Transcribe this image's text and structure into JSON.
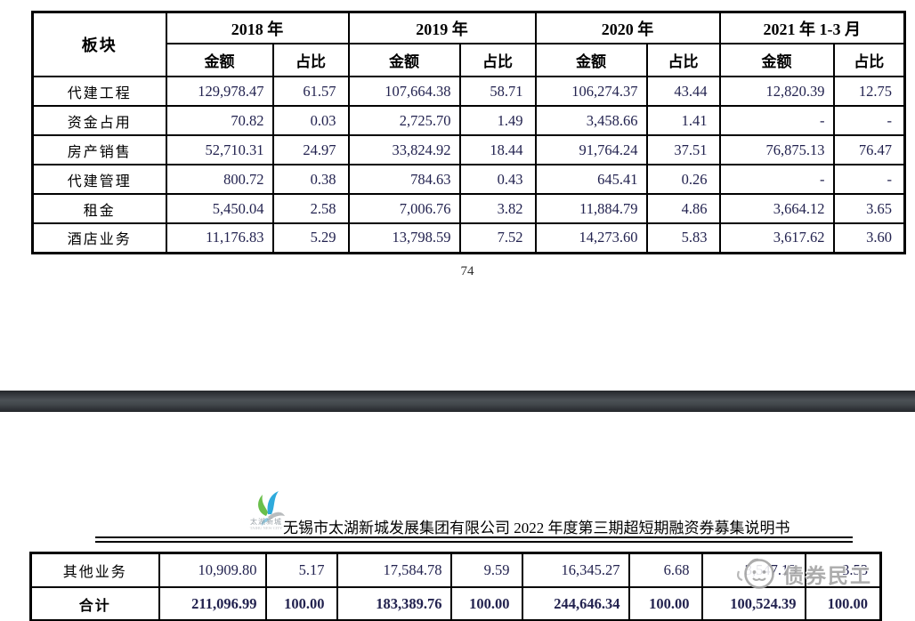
{
  "document": {
    "page_number": "74",
    "title": "无锡市太湖新城发展集团有限公司 2022 年度第三期超短期融资券募集说明书",
    "logo": {
      "name": "太湖新城",
      "subtext": "TAIHU NEW CITY"
    },
    "watermark": "债券民工"
  },
  "table": {
    "corner_header": "板块",
    "year_groups": [
      "2018 年",
      "2019 年",
      "2020 年",
      "2021 年 1-3 月"
    ],
    "sub_headers": [
      "金额",
      "占比"
    ],
    "rows_page1": [
      {
        "label": "代建工程",
        "values": [
          "129,978.47",
          "61.57",
          "107,664.38",
          "58.71",
          "106,274.37",
          "43.44",
          "12,820.39",
          "12.75"
        ],
        "bold": false
      },
      {
        "label": "资金占用",
        "values": [
          "70.82",
          "0.03",
          "2,725.70",
          "1.49",
          "3,458.66",
          "1.41",
          "-",
          "-"
        ],
        "bold": false
      },
      {
        "label": "房产销售",
        "values": [
          "52,710.31",
          "24.97",
          "33,824.92",
          "18.44",
          "91,764.24",
          "37.51",
          "76,875.13",
          "76.47"
        ],
        "bold": false
      },
      {
        "label": "代建管理",
        "values": [
          "800.72",
          "0.38",
          "784.63",
          "0.43",
          "645.41",
          "0.26",
          "-",
          "-"
        ],
        "bold": false
      },
      {
        "label": "租金",
        "values": [
          "5,450.04",
          "2.58",
          "7,006.76",
          "3.82",
          "11,884.79",
          "4.86",
          "3,664.12",
          "3.65"
        ],
        "bold": false
      },
      {
        "label": "酒店业务",
        "values": [
          "11,176.83",
          "5.29",
          "13,798.59",
          "7.52",
          "14,273.60",
          "5.83",
          "3,617.62",
          "3.60"
        ],
        "bold": false
      }
    ],
    "rows_page2": [
      {
        "label": "其他业务",
        "values": [
          "10,909.80",
          "5.17",
          "17,584.78",
          "9.59",
          "16,345.27",
          "6.68",
          "3,547.13",
          "3.53"
        ],
        "bold": false
      },
      {
        "label": "合计",
        "values": [
          "211,096.99",
          "100.00",
          "183,389.76",
          "100.00",
          "244,646.34",
          "100.00",
          "100,524.39",
          "100.00"
        ],
        "bold": true
      }
    ]
  },
  "colors": {
    "table_border": "#000000",
    "number_ink": "#22224f",
    "separator_band": "#42474c",
    "watermark_gray": "#a6a6a6",
    "logo_green": "#6abf4b",
    "logo_blue": "#2eaadc",
    "logo_gray": "#b9bcbe"
  }
}
